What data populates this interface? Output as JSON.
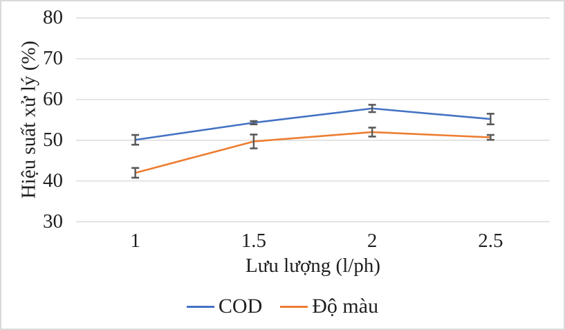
{
  "chart_data": {
    "type": "line",
    "categories": [
      "1",
      "1.5",
      "2",
      "2.5"
    ],
    "series": [
      {
        "name": "COD",
        "color": "#4472C4",
        "values": [
          50.1,
          54.3,
          57.8,
          55.2
        ],
        "error_bars": [
          1.2,
          0.4,
          0.9,
          1.3
        ]
      },
      {
        "name": "Độ màu",
        "color": "#ED7D31",
        "values": [
          42.0,
          49.7,
          52.0,
          50.7
        ],
        "error_bars": [
          1.2,
          1.7,
          1.1,
          0.6
        ]
      }
    ],
    "title": "",
    "xlabel": "Lưu lượng (l/ph)",
    "ylabel": "Hiệu suất xử lý (%)",
    "ylim": [
      30,
      80
    ],
    "yticks": [
      80,
      70,
      60,
      50,
      40,
      30
    ],
    "grid": true,
    "legend_position": "bottom",
    "gridline_color": "#D9D9D9",
    "error_bar_color": "#595959",
    "frame_border_color": "#D9D9D9"
  }
}
